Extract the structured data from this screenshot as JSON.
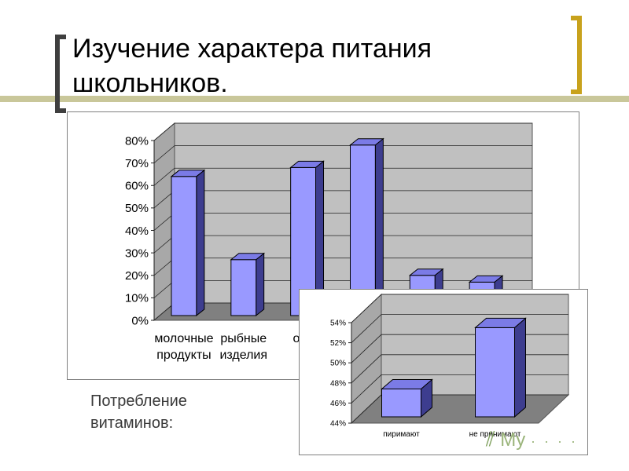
{
  "slide": {
    "title": "Изучение характера питания школьников.",
    "caption": "Потребление витаминов:",
    "watermark_text": "My",
    "watermark_dots": "· · · ·"
  },
  "colors": {
    "bar_front": "#9999ff",
    "bar_top": "#7b7be6",
    "bar_side": "#3d3d8f",
    "plot_back": "#c0c0c0",
    "plot_side": "#a8a8a8",
    "floor": "#808080",
    "accent_right": "#c8a21c",
    "accent_line": "#c9c79a"
  },
  "chart_data": [
    {
      "type": "bar",
      "categories": [
        "молочные продукты",
        "рыбные изделия",
        "ово",
        "",
        "",
        ""
      ],
      "values": [
        0.64,
        0.27,
        0.68,
        0.78,
        0.2,
        0.17
      ],
      "ylim": [
        0,
        0.8
      ],
      "yticks": [
        0,
        0.1,
        0.2,
        0.3,
        0.4,
        0.5,
        0.6,
        0.7,
        0.8
      ],
      "ytick_labels": [
        "0%",
        "10%",
        "20%",
        "30%",
        "40%",
        "50%",
        "60%",
        "70%",
        "80%"
      ],
      "grid": true,
      "legend": "none",
      "title": "",
      "xlabel": "",
      "ylabel": ""
    },
    {
      "type": "bar",
      "categories": [
        "пиримают",
        "не принимают"
      ],
      "values": [
        0.474,
        0.535
      ],
      "ylim": [
        0.44,
        0.54
      ],
      "yticks": [
        0.44,
        0.46,
        0.48,
        0.5,
        0.52,
        0.54
      ],
      "ytick_labels": [
        "44%",
        "46%",
        "48%",
        "50%",
        "52%",
        "54%"
      ],
      "grid": true,
      "legend": "none",
      "title": "",
      "xlabel": "",
      "ylabel": ""
    }
  ]
}
